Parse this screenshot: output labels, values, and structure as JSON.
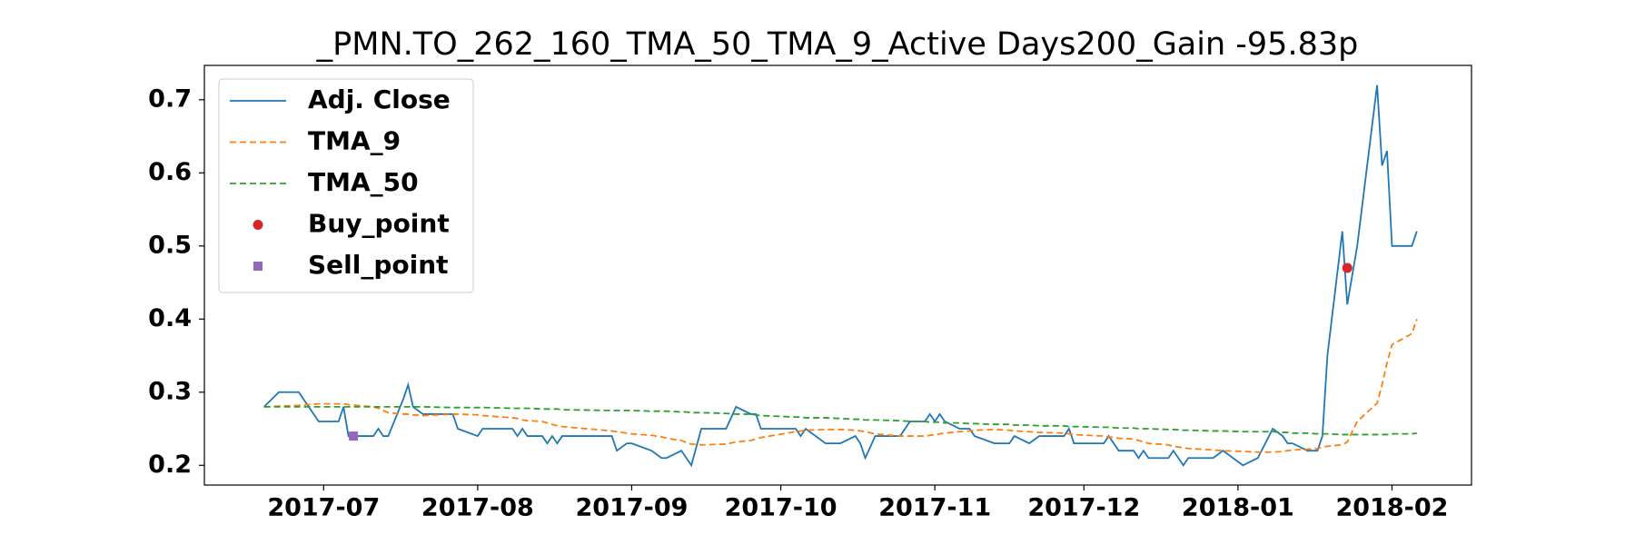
{
  "chart_data": {
    "type": "line",
    "title": "_PMN.TO_262_160_TMA_50_TMA_9_Active Days200_Gain -95.83p",
    "x": [
      "2017-06-19",
      "2017-06-22",
      "2017-06-26",
      "2017-06-28",
      "2017-06-30",
      "2017-07-04",
      "2017-07-05",
      "2017-07-06",
      "2017-07-11",
      "2017-07-12",
      "2017-07-13",
      "2017-07-14",
      "2017-07-17",
      "2017-07-18",
      "2017-07-19",
      "2017-07-21",
      "2017-07-27",
      "2017-07-28",
      "2017-08-01",
      "2017-08-02",
      "2017-08-08",
      "2017-08-09",
      "2017-08-10",
      "2017-08-11",
      "2017-08-14",
      "2017-08-15",
      "2017-08-16",
      "2017-08-17",
      "2017-08-18",
      "2017-08-28",
      "2017-08-29",
      "2017-08-31",
      "2017-09-01",
      "2017-09-05",
      "2017-09-07",
      "2017-09-08",
      "2017-09-11",
      "2017-09-12",
      "2017-09-13",
      "2017-09-15",
      "2017-09-20",
      "2017-09-22",
      "2017-09-25",
      "2017-09-26",
      "2017-09-27",
      "2017-10-04",
      "2017-10-05",
      "2017-10-06",
      "2017-10-10",
      "2017-10-13",
      "2017-10-16",
      "2017-10-17",
      "2017-10-18",
      "2017-10-20",
      "2017-10-25",
      "2017-10-27",
      "2017-10-30",
      "2017-10-31",
      "2017-11-01",
      "2017-11-02",
      "2017-11-03",
      "2017-11-06",
      "2017-11-08",
      "2017-11-09",
      "2017-11-13",
      "2017-11-16",
      "2017-11-17",
      "2017-11-20",
      "2017-11-22",
      "2017-11-27",
      "2017-11-28",
      "2017-11-29",
      "2017-12-05",
      "2017-12-06",
      "2017-12-08",
      "2017-12-11",
      "2017-12-12",
      "2017-12-13",
      "2017-12-14",
      "2017-12-18",
      "2017-12-19",
      "2017-12-21",
      "2017-12-22",
      "2017-12-27",
      "2017-12-29",
      "2018-01-02",
      "2018-01-05",
      "2018-01-08",
      "2018-01-10",
      "2018-01-11",
      "2018-01-12",
      "2018-01-15",
      "2018-01-17",
      "2018-01-18",
      "2018-01-19",
      "2018-01-22",
      "2018-01-23",
      "2018-01-25",
      "2018-01-29",
      "2018-01-30",
      "2018-01-31",
      "2018-02-01",
      "2018-02-05",
      "2018-02-06"
    ],
    "series": [
      {
        "name": "Adj. Close",
        "color": "#1f77b4",
        "linestyle": "solid",
        "values": [
          0.28,
          0.3,
          0.3,
          0.28,
          0.26,
          0.26,
          0.28,
          0.24,
          0.24,
          0.25,
          0.24,
          0.24,
          0.29,
          0.31,
          0.28,
          0.27,
          0.27,
          0.25,
          0.24,
          0.25,
          0.25,
          0.24,
          0.25,
          0.24,
          0.24,
          0.23,
          0.24,
          0.23,
          0.24,
          0.24,
          0.22,
          0.23,
          0.23,
          0.22,
          0.21,
          0.21,
          0.22,
          0.21,
          0.2,
          0.25,
          0.25,
          0.28,
          0.27,
          0.27,
          0.25,
          0.25,
          0.24,
          0.25,
          0.23,
          0.23,
          0.24,
          0.23,
          0.21,
          0.24,
          0.24,
          0.26,
          0.26,
          0.27,
          0.26,
          0.27,
          0.26,
          0.25,
          0.25,
          0.24,
          0.23,
          0.23,
          0.24,
          0.23,
          0.24,
          0.24,
          0.25,
          0.23,
          0.23,
          0.24,
          0.22,
          0.22,
          0.21,
          0.22,
          0.21,
          0.21,
          0.22,
          0.2,
          0.21,
          0.21,
          0.22,
          0.2,
          0.21,
          0.25,
          0.24,
          0.23,
          0.23,
          0.22,
          0.22,
          0.24,
          0.35,
          0.52,
          0.42,
          0.5,
          0.72,
          0.61,
          0.63,
          0.5,
          0.5,
          0.52
        ]
      },
      {
        "name": "TMA_9",
        "color": "#ff7f0e",
        "linestyle": "dashed",
        "values": [
          0.28,
          0.281,
          0.282,
          0.283,
          0.284,
          0.284,
          0.284,
          0.283,
          0.28,
          0.278,
          0.275,
          0.272,
          0.27,
          0.27,
          0.269,
          0.268,
          0.27,
          0.27,
          0.269,
          0.268,
          0.265,
          0.264,
          0.262,
          0.261,
          0.26,
          0.258,
          0.256,
          0.254,
          0.253,
          0.247,
          0.246,
          0.244,
          0.243,
          0.241,
          0.239,
          0.237,
          0.234,
          0.231,
          0.229,
          0.228,
          0.229,
          0.232,
          0.234,
          0.236,
          0.238,
          0.246,
          0.247,
          0.248,
          0.249,
          0.249,
          0.248,
          0.247,
          0.246,
          0.243,
          0.24,
          0.24,
          0.24,
          0.241,
          0.242,
          0.243,
          0.244,
          0.246,
          0.247,
          0.248,
          0.249,
          0.248,
          0.247,
          0.246,
          0.245,
          0.244,
          0.243,
          0.242,
          0.24,
          0.239,
          0.237,
          0.236,
          0.234,
          0.232,
          0.23,
          0.228,
          0.226,
          0.224,
          0.223,
          0.221,
          0.22,
          0.219,
          0.218,
          0.218,
          0.219,
          0.22,
          0.221,
          0.222,
          0.223,
          0.225,
          0.226,
          0.228,
          0.232,
          0.26,
          0.285,
          0.31,
          0.34,
          0.365,
          0.38,
          0.4
        ]
      },
      {
        "name": "TMA_50",
        "color": "#2ca02c",
        "linestyle": "dashed",
        "values": [
          0.28,
          0.28,
          0.28,
          0.28,
          0.28,
          0.28,
          0.28,
          0.28,
          0.28,
          0.28,
          0.28,
          0.28,
          0.28,
          0.28,
          0.28,
          0.28,
          0.279,
          0.279,
          0.279,
          0.279,
          0.278,
          0.278,
          0.278,
          0.278,
          0.277,
          0.277,
          0.277,
          0.277,
          0.276,
          0.275,
          0.275,
          0.275,
          0.275,
          0.274,
          0.274,
          0.274,
          0.273,
          0.273,
          0.272,
          0.272,
          0.271,
          0.27,
          0.27,
          0.269,
          0.268,
          0.266,
          0.266,
          0.265,
          0.265,
          0.264,
          0.263,
          0.263,
          0.262,
          0.262,
          0.261,
          0.26,
          0.26,
          0.259,
          0.259,
          0.259,
          0.258,
          0.258,
          0.257,
          0.257,
          0.256,
          0.256,
          0.255,
          0.255,
          0.254,
          0.254,
          0.253,
          0.253,
          0.252,
          0.252,
          0.251,
          0.251,
          0.25,
          0.25,
          0.25,
          0.249,
          0.249,
          0.248,
          0.248,
          0.247,
          0.247,
          0.246,
          0.246,
          0.246,
          0.245,
          0.245,
          0.244,
          0.244,
          0.243,
          0.243,
          0.243,
          0.242,
          0.242,
          0.242,
          0.242,
          0.242,
          0.242,
          0.243,
          0.243,
          0.244
        ]
      },
      {
        "name": "Buy_point",
        "color": "#d62728",
        "marker": "circle",
        "x": [
          "2018-01-23"
        ],
        "values": [
          0.47
        ]
      },
      {
        "name": "Sell_point",
        "color": "#9467bd",
        "marker": "square",
        "x": [
          "2017-07-07"
        ],
        "values": [
          0.24
        ]
      }
    ],
    "xlim": [
      "2017-06-07",
      "2018-02-17"
    ],
    "xticks": [
      "2017-07",
      "2017-08",
      "2017-09",
      "2017-10",
      "2017-11",
      "2017-12",
      "2018-01",
      "2018-02"
    ],
    "ylim": [
      0.173,
      0.747
    ],
    "yticks": [
      0.2,
      0.3,
      0.4,
      0.5,
      0.6,
      0.7
    ],
    "grid": false,
    "legend": "upper left"
  }
}
